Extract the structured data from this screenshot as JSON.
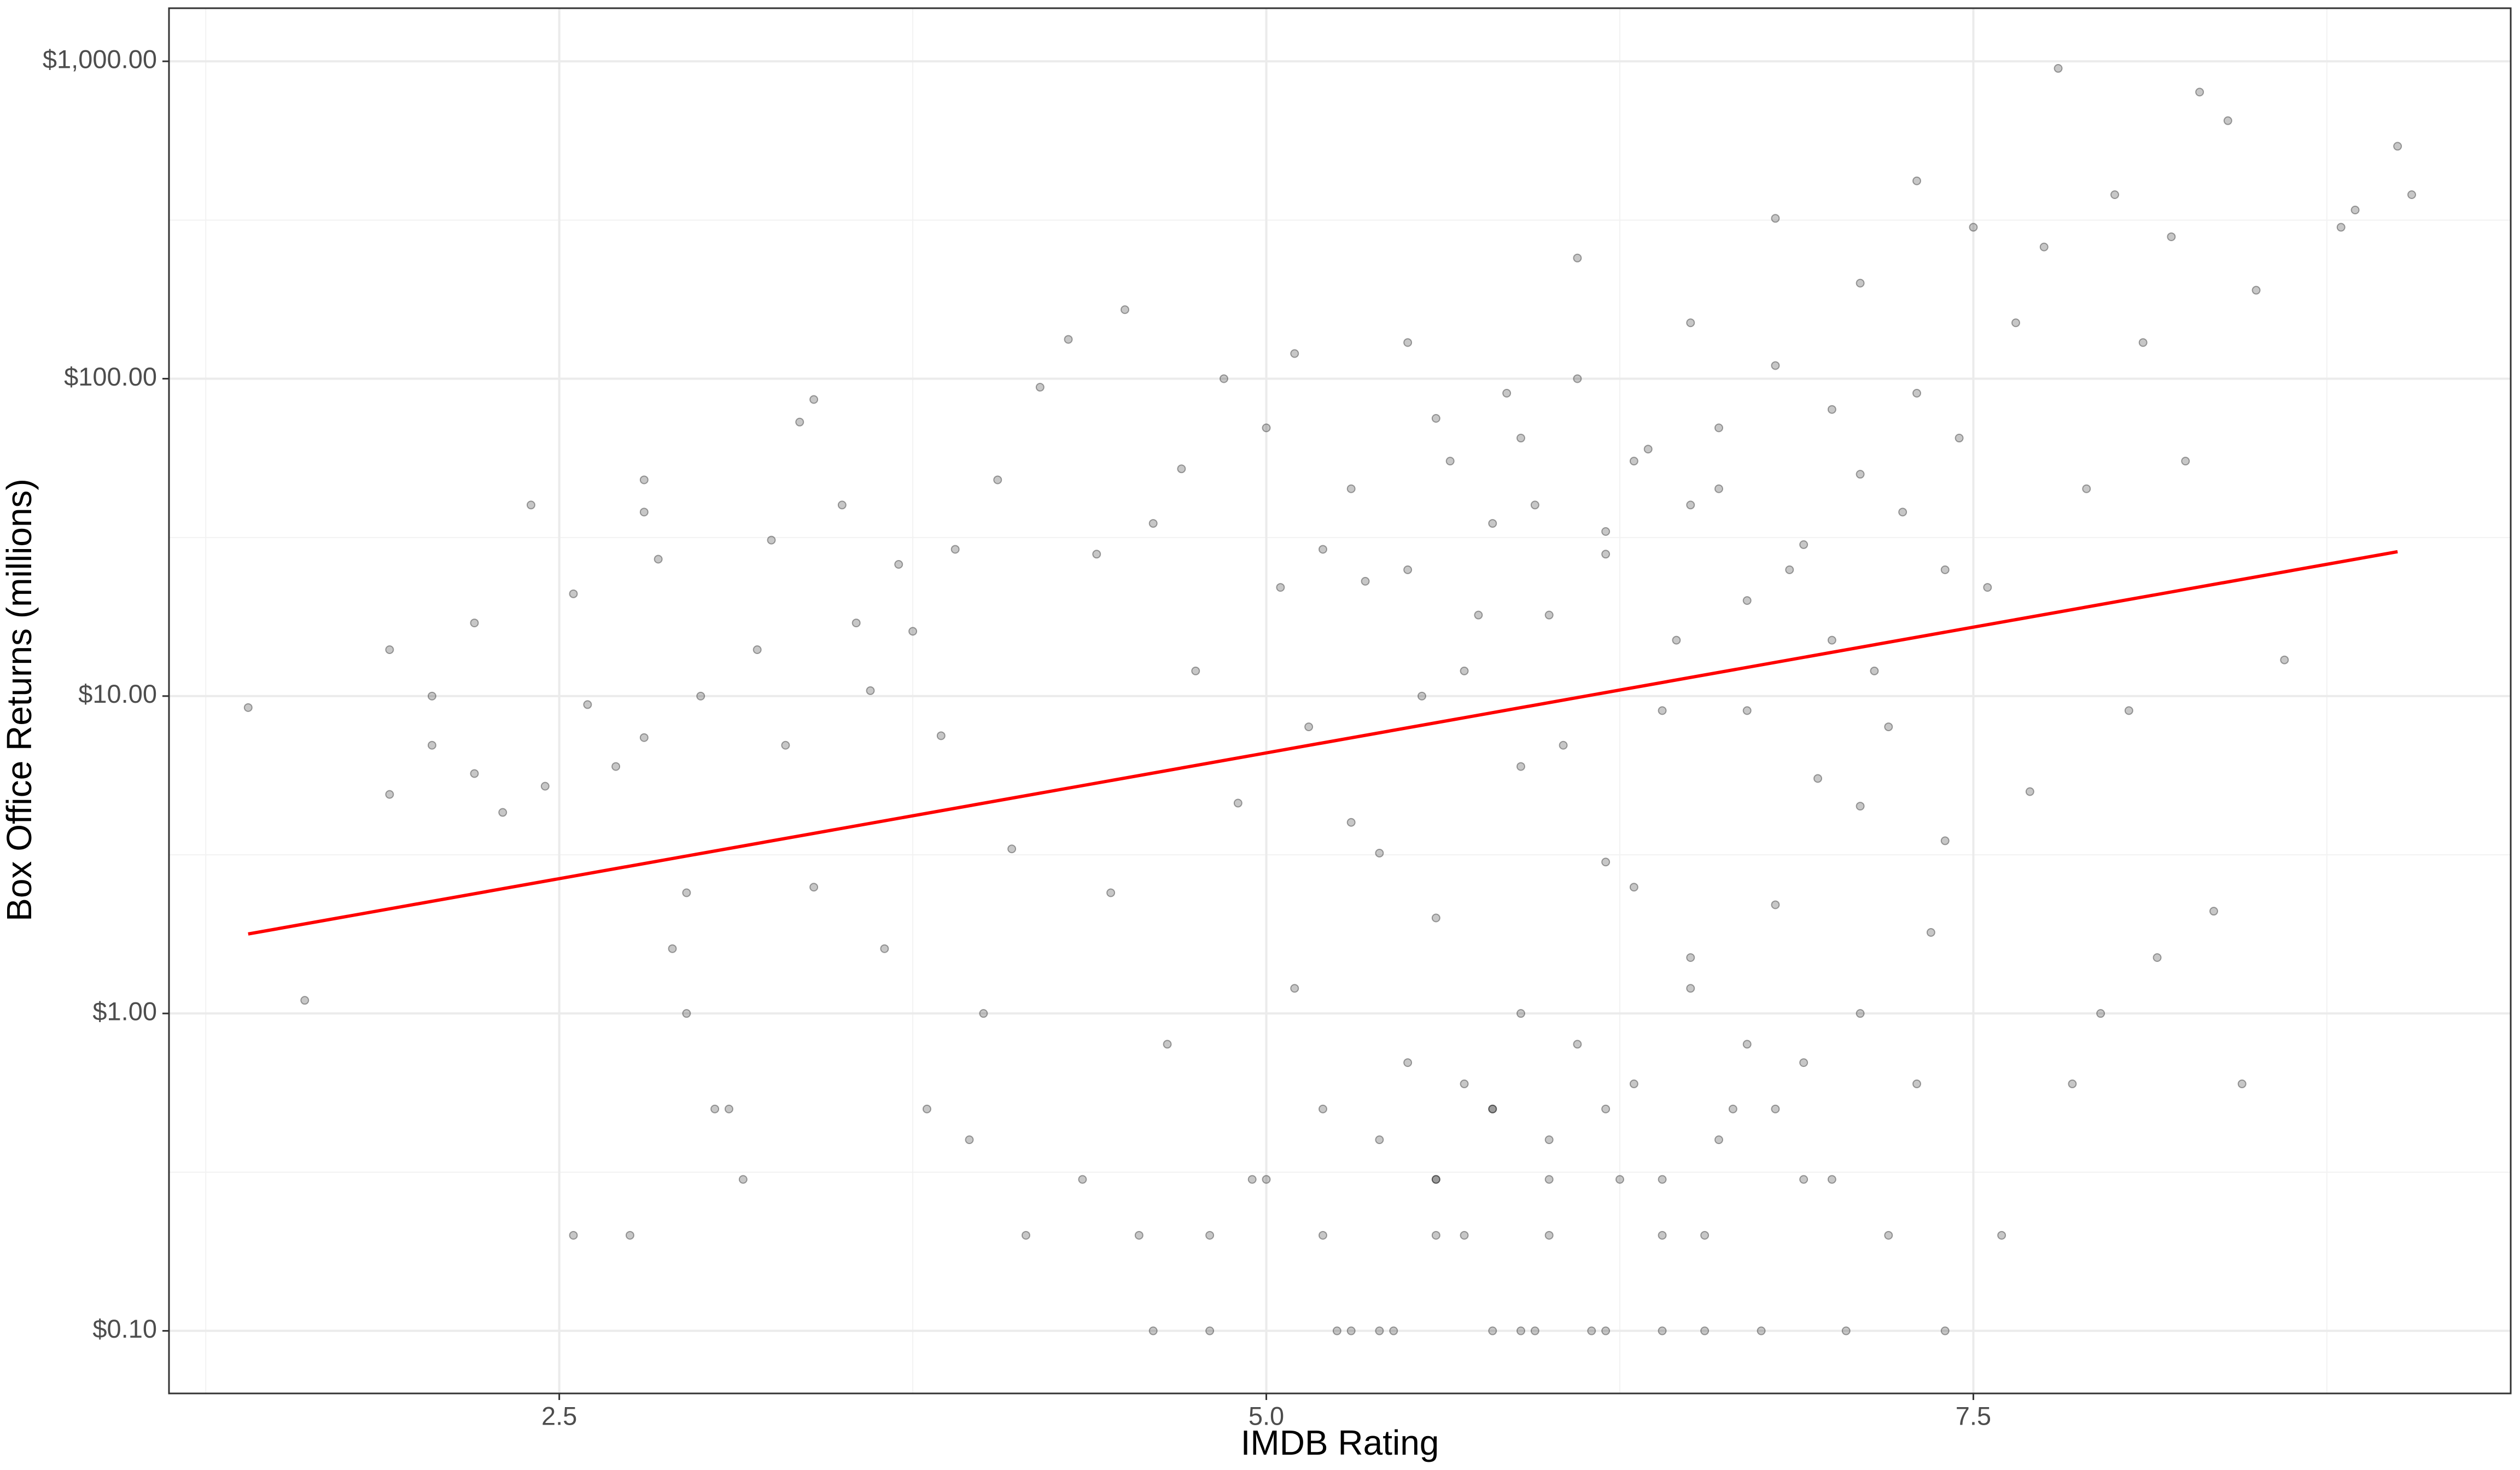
{
  "chart_data": {
    "type": "scatter",
    "xlabel": "IMDB Rating",
    "ylabel": "Box Office Returns (millions)",
    "xlim": [
      1.12,
      9.4
    ],
    "ylim": [
      0.0635,
      1470
    ],
    "ylog": true,
    "grid": true,
    "xticks": [
      2.5,
      {
        "value": 5,
        "label": "5.0"
      },
      7.5
    ],
    "yticks": [
      {
        "value": 1000,
        "label": "$1,000.00"
      },
      {
        "value": 100,
        "label": "$100.00"
      },
      {
        "value": 10,
        "label": "$10.00"
      },
      {
        "value": 1,
        "label": "$1.00"
      },
      {
        "value": 0.1,
        "label": "$0.10"
      }
    ],
    "xminor": [
      1.25,
      3.75,
      6.25,
      8.75
    ],
    "yminor": [
      0.316,
      3.16,
      31.6,
      316
    ],
    "point_color": "#000000",
    "x": [
      1.4,
      1.6,
      1.9,
      1.9,
      2.05,
      2.05,
      2.2,
      2.2,
      2.3,
      2.4,
      2.45,
      2.55,
      2.55,
      2.6,
      2.7,
      2.75,
      2.8,
      2.8,
      2.85,
      2.8,
      2.9,
      2.95,
      2.95,
      3.0,
      3.05,
      3.1,
      3.15,
      3.2,
      3.25,
      3.3,
      3.35,
      3.4,
      3.4,
      3.5,
      3.55,
      3.6,
      3.65,
      3.7,
      3.75,
      3.8,
      3.85,
      3.9,
      3.95,
      4.0,
      4.05,
      4.1,
      4.15,
      4.2,
      4.3,
      4.35,
      4.4,
      4.45,
      4.5,
      4.55,
      4.6,
      4.65,
      4.7,
      4.75,
      4.8,
      4.85,
      4.9,
      4.95,
      5.0,
      5.05,
      5.1,
      5.15,
      5.2,
      5.25,
      5.3,
      5.35,
      5.4,
      5.45,
      5.5,
      5.55,
      5.6,
      5.65,
      5.7,
      5.75,
      5.8,
      5.85,
      5.9,
      5.95,
      6.0,
      6.05,
      6.1,
      6.15,
      6.2,
      6.25,
      6.3,
      6.35,
      6.4,
      6.45,
      6.5,
      6.55,
      6.6,
      6.65,
      6.7,
      6.75,
      6.8,
      6.85,
      6.9,
      6.95,
      7.0,
      7.05,
      7.1,
      7.15,
      7.2,
      7.25,
      7.3,
      7.35,
      7.4,
      7.45,
      7.5,
      7.55,
      7.6,
      7.65,
      7.7,
      7.75,
      7.8,
      7.85,
      7.9,
      7.95,
      8.0,
      8.05,
      8.1,
      8.15,
      8.2,
      8.25,
      8.3,
      8.35,
      8.4,
      8.45,
      8.5,
      8.6,
      8.8,
      8.85,
      9.0,
      9.05,
      5.1,
      5.3,
      5.5,
      5.6,
      5.7,
      5.8,
      5.9,
      6.0,
      6.1,
      6.2,
      6.3,
      6.4,
      6.5,
      6.6,
      6.7,
      6.8,
      6.9,
      7.0,
      7.1,
      7.2,
      7.3,
      7.4,
      5.2,
      5.4,
      5.6,
      5.8,
      6.0,
      6.2,
      6.4,
      6.6,
      6.8,
      7.0,
      5.5,
      5.7,
      5.9,
      6.1,
      6.3,
      6.5,
      6.7,
      6.9,
      7.1,
      7.3,
      5.3,
      5.6,
      5.9,
      6.2,
      6.5,
      6.8,
      7.1,
      7.4,
      5.95,
      6.55,
      4.6,
      4.8,
      5.0,
      5.2,
      5.4,
      5.6,
      5.8,
      6.0,
      6.2,
      6.4
    ],
    "y": [
      9.2,
      1.1,
      14,
      4.9,
      10,
      7,
      5.7,
      17,
      4.3,
      40,
      5.2,
      21,
      0.2,
      9.4,
      6,
      0.2,
      48,
      38,
      27,
      7.4,
      1.6,
      1,
      2.4,
      10,
      0.5,
      0.5,
      0.3,
      14,
      31,
      7,
      73,
      86,
      2.5,
      40,
      17,
      10.4,
      1.6,
      26,
      16,
      0.5,
      7.5,
      29,
      0.4,
      1,
      48,
      3.3,
      0.2,
      94,
      133,
      0.3,
      28,
      2.4,
      165,
      0.2,
      35,
      0.8,
      52,
      12,
      0.2,
      100,
      4.6,
      0.3,
      70,
      22,
      1.2,
      8,
      29,
      0.1,
      0.1,
      23,
      3.2,
      0.1,
      130,
      10,
      0.3,
      55,
      0.2,
      18,
      0.5,
      90,
      0.1,
      40,
      0.4,
      7,
      240,
      0.1,
      33,
      0.3,
      2.5,
      60,
      0.1,
      15,
      150,
      0.2,
      45,
      0.5,
      9,
      0.1,
      320,
      25,
      0.3,
      5.5,
      80,
      0.1,
      200,
      12,
      0.2,
      38,
      420,
      1.8,
      0.1,
      65,
      300,
      22,
      0.2,
      150,
      5,
      260,
      950,
      0.6,
      45,
      1,
      380,
      9,
      130,
      1.5,
      280,
      55,
      800,
      2.1,
      650,
      0.6,
      190,
      13,
      300,
      340,
      540,
      380,
      120,
      45,
      25,
      75,
      12,
      35,
      65,
      18,
      100,
      28,
      55,
      9,
      40,
      70,
      20,
      110,
      30,
      15,
      50,
      8,
      90,
      25,
      0.5,
      0.4,
      0.3,
      0.5,
      0.2,
      0.5,
      0.3,
      0.4,
      0.5,
      0.3,
      0.7,
      0.6,
      1,
      0.8,
      0.6,
      1.2,
      0.8,
      0.7,
      1,
      0.6,
      4,
      2,
      6,
      3,
      1.5,
      2.2,
      4.5,
      3.5,
      0.1,
      0.1,
      0.1,
      0.1,
      0.3,
      0.2,
      0.1,
      0.2,
      0.1,
      0.3,
      0.1,
      0.2
    ],
    "trend": {
      "color": "#ff0000",
      "x": [
        1.4,
        9.0
      ],
      "y": [
        1.78,
        28.5
      ]
    }
  }
}
